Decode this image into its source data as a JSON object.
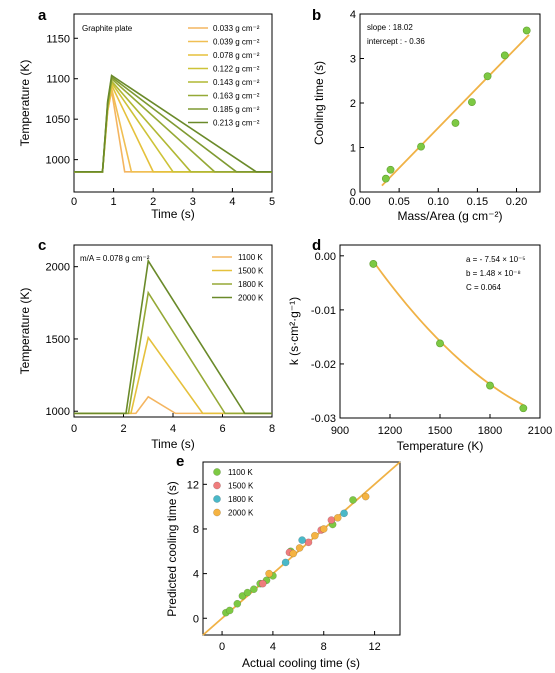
{
  "chart_data": [
    {
      "panel": "a",
      "type": "line",
      "xlabel": "Time (s)",
      "ylabel": "Temperature (K)",
      "xlim": [
        0,
        5
      ],
      "ylim": [
        960,
        1180
      ],
      "xticks": [
        "0",
        "1",
        "2",
        "3",
        "4",
        "5"
      ],
      "yticks": [
        "1000",
        "1050",
        "1100",
        "1150"
      ],
      "annotation": "Graphite plate",
      "series": [
        {
          "name": "0.033 g cm⁻²",
          "color": "#f4b560",
          "x": [
            0,
            0.72,
            0.85,
            0.95,
            1.28,
            5
          ],
          "y": [
            985,
            985,
            1060,
            1085,
            985,
            985
          ]
        },
        {
          "name": "0.039 g cm⁻²",
          "color": "#f0bf53",
          "x": [
            0,
            0.72,
            0.85,
            0.95,
            1.45,
            5
          ],
          "y": [
            985,
            985,
            1060,
            1088,
            985,
            985
          ]
        },
        {
          "name": "0.078 g cm⁻²",
          "color": "#e5c13c",
          "x": [
            0,
            0.72,
            0.85,
            0.95,
            2.0,
            5
          ],
          "y": [
            985,
            985,
            1062,
            1092,
            985,
            985
          ]
        },
        {
          "name": "0.122 g cm⁻²",
          "color": "#cdc338",
          "x": [
            0,
            0.72,
            0.85,
            0.95,
            2.5,
            5
          ],
          "y": [
            985,
            985,
            1064,
            1095,
            985,
            985
          ]
        },
        {
          "name": "0.143 g cm⁻²",
          "color": "#b1b834",
          "x": [
            0,
            0.72,
            0.85,
            0.95,
            2.95,
            5
          ],
          "y": [
            985,
            985,
            1066,
            1097,
            985,
            985
          ]
        },
        {
          "name": "0.163 g cm⁻²",
          "color": "#95a936",
          "x": [
            0,
            0.72,
            0.85,
            0.95,
            3.55,
            5
          ],
          "y": [
            985,
            985,
            1068,
            1100,
            985,
            985
          ]
        },
        {
          "name": "0.185 g cm⁻²",
          "color": "#7f9a32",
          "x": [
            0,
            0.72,
            0.85,
            0.95,
            4.1,
            5
          ],
          "y": [
            985,
            985,
            1070,
            1102,
            985,
            985
          ]
        },
        {
          "name": "0.213 g cm⁻²",
          "color": "#6a8a2a",
          "x": [
            0,
            0.72,
            0.85,
            0.95,
            4.6,
            5
          ],
          "y": [
            985,
            985,
            1072,
            1104,
            985,
            985
          ]
        }
      ]
    },
    {
      "panel": "b",
      "type": "scatter",
      "xlabel": "Mass/Area  (g cm⁻²)",
      "ylabel": "Cooling time (s)",
      "xlim": [
        0,
        0.23
      ],
      "ylim": [
        0,
        4
      ],
      "xticks": [
        "0.00",
        "0.05",
        "0.10",
        "0.15",
        "0.20"
      ],
      "yticks": [
        "0",
        "1",
        "2",
        "3",
        "4"
      ],
      "notes": [
        "slope : 18.02",
        "intercept : - 0.36"
      ],
      "fit": {
        "slope": 18.02,
        "intercept": -0.36,
        "x_range": [
          0.028,
          0.216
        ]
      },
      "points": {
        "x": [
          0.033,
          0.039,
          0.078,
          0.122,
          0.143,
          0.163,
          0.185,
          0.213
        ],
        "y": [
          0.3,
          0.5,
          1.02,
          1.55,
          2.02,
          2.6,
          3.07,
          3.63
        ]
      }
    },
    {
      "panel": "c",
      "type": "line",
      "xlabel": "Time (s)",
      "ylabel": "Temperature (K)",
      "xlim": [
        0,
        8
      ],
      "ylim": [
        960,
        2150
      ],
      "xticks": [
        "0",
        "2",
        "4",
        "6",
        "8"
      ],
      "yticks": [
        "1000",
        "1500",
        "2000"
      ],
      "annotation": "m/A = 0.078 g cm⁻²",
      "series": [
        {
          "name": "1100 K",
          "color": "#f4b560",
          "x": [
            0,
            2.5,
            3.0,
            4.1,
            8
          ],
          "y": [
            985,
            985,
            1100,
            985,
            985
          ]
        },
        {
          "name": "1500 K",
          "color": "#e5c13c",
          "x": [
            0,
            2.3,
            3.0,
            5.2,
            8
          ],
          "y": [
            985,
            985,
            1510,
            985,
            985
          ]
        },
        {
          "name": "1800 K",
          "color": "#95a936",
          "x": [
            0,
            2.2,
            3.0,
            6.1,
            8
          ],
          "y": [
            985,
            985,
            1820,
            985,
            985
          ]
        },
        {
          "name": "2000 K",
          "color": "#6a8a2a",
          "x": [
            0,
            2.1,
            3.0,
            6.9,
            8
          ],
          "y": [
            985,
            985,
            2040,
            985,
            985
          ]
        }
      ]
    },
    {
      "panel": "d",
      "type": "scatter",
      "xlabel": "Temperature (K)",
      "ylabel": "k (s·cm²·g⁻¹)",
      "xlim": [
        900,
        2100
      ],
      "ylim": [
        -0.03,
        0.002
      ],
      "xticks": [
        "900",
        "1200",
        "1500",
        "1800",
        "2100"
      ],
      "yticks": [
        "0.00",
        "-0.01",
        "-0.02",
        "-0.03"
      ],
      "notes": [
        "a = - 7.54 × 10⁻⁵",
        "b = 1.48 × 10⁻⁸",
        "C = 0.064"
      ],
      "fit": {
        "a": -7.54e-05,
        "b": 1.48e-08,
        "c": 0.064,
        "x_range": [
          1100,
          2000
        ]
      },
      "points": {
        "x": [
          1100,
          1500,
          1800,
          2000
        ],
        "y": [
          -0.0015,
          -0.0162,
          -0.024,
          -0.0282
        ]
      }
    },
    {
      "panel": "e",
      "type": "scatter",
      "xlabel": "Actual cooling time (s)",
      "ylabel": "Predicted cooling time (s)",
      "xlim": [
        -1.5,
        14
      ],
      "ylim": [
        -1.5,
        14
      ],
      "xticks": [
        "0",
        "4",
        "8",
        "12"
      ],
      "yticks": [
        "0",
        "4",
        "8",
        "12"
      ],
      "series": [
        {
          "name": "1100 K",
          "color": "#7dc943",
          "x": [
            0.3,
            0.6,
            1.2,
            1.6,
            2.0,
            2.5,
            3.0,
            3.5,
            4.0,
            5.4,
            8.7,
            10.3
          ],
          "y": [
            0.5,
            0.7,
            1.3,
            2.0,
            2.3,
            2.6,
            3.1,
            3.4,
            3.8,
            6.0,
            8.4,
            10.6
          ]
        },
        {
          "name": "1500 K",
          "color": "#ef7d7d",
          "x": [
            3.2,
            5.3,
            6.8,
            7.8,
            8.6
          ],
          "y": [
            3.1,
            5.9,
            6.8,
            7.9,
            8.8
          ]
        },
        {
          "name": "1800 K",
          "color": "#4ab8c8",
          "x": [
            5.0,
            6.3,
            9.6
          ],
          "y": [
            5.0,
            7.0,
            9.4
          ]
        },
        {
          "name": "2000 K",
          "color": "#f5b342",
          "x": [
            3.7,
            5.6,
            6.1,
            7.3,
            8.0,
            9.1,
            11.3
          ],
          "y": [
            4.0,
            5.8,
            6.3,
            7.4,
            8.0,
            9.0,
            10.9
          ]
        }
      ]
    }
  ]
}
